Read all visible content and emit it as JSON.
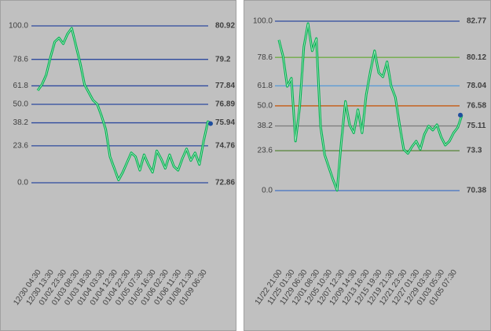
{
  "chart_data": [
    {
      "type": "line",
      "categories": [
        "12/30 04:30",
        null,
        null,
        "12/30 13:30",
        null,
        null,
        "01/02 23:30",
        null,
        null,
        "01/03 08:30",
        null,
        null,
        "01/03 18:30",
        null,
        null,
        "01/04 03:30",
        null,
        null,
        "01/04 12:30",
        null,
        null,
        "01/04 22:30",
        null,
        null,
        "01/05 07:30",
        null,
        null,
        "01/05 16:30",
        null,
        null,
        "01/06 02:30",
        null,
        null,
        "01/06 11:30",
        null,
        null,
        "01/08 21:30",
        null,
        null,
        "01/09 06:30",
        null,
        null
      ],
      "series": [
        {
          "color": "#00b050",
          "values": [
            77.6,
            77.9,
            78.4,
            79.3,
            80.1,
            80.3,
            80.0,
            80.5,
            80.8,
            79.9,
            79.0,
            77.9,
            77.5,
            77.1,
            76.9,
            76.3,
            75.6,
            74.2,
            73.6,
            73.0,
            73.4,
            73.9,
            74.4,
            74.2,
            73.5,
            74.3,
            73.8,
            73.4,
            74.5,
            74.1,
            73.6,
            74.3,
            73.7,
            73.5,
            74.1,
            74.6,
            74.0,
            74.4,
            73.8,
            75.0,
            76.0,
            75.9
          ]
        }
      ],
      "marker_color": "#1f4e9e",
      "ylim": [
        72.86,
        80.92
      ],
      "yticks": [
        80.92,
        79.2,
        77.84,
        76.89,
        75.94,
        74.76,
        72.86
      ],
      "fib_labels": [
        "100.0",
        "78.6",
        "61.8",
        "50.0",
        "38.2",
        "23.6",
        "0.0"
      ],
      "level_colors": [
        "#2e4a9e",
        "#2e4a9e",
        "#2e4a9e",
        "#2e4a9e",
        "#2e4a9e",
        "#2e4a9e",
        "#2e4a9e"
      ]
    },
    {
      "type": "line",
      "categories": [
        "11/22 21:00",
        null,
        null,
        "11/25 01:30",
        null,
        null,
        "11/29 06:30",
        null,
        null,
        "12/01 08:30",
        null,
        null,
        "12/05 10:30",
        null,
        null,
        "12/07 12:30",
        null,
        null,
        "12/09 14:30",
        null,
        null,
        "12/13 16:30",
        null,
        null,
        "12/15 19:30",
        null,
        null,
        "12/19 21:30",
        null,
        null,
        "12/21 23:30",
        null,
        null,
        "12/27 01:30",
        null,
        null,
        "12/29 03:30",
        null,
        null,
        "01/03 05:30",
        null,
        null,
        "01/05 07:30",
        null,
        null
      ],
      "series": [
        {
          "color": "#00b050",
          "values": [
            81.4,
            80.2,
            78.0,
            78.6,
            74.0,
            76.5,
            80.9,
            82.6,
            80.6,
            81.5,
            75.1,
            73.0,
            72.1,
            71.2,
            70.4,
            73.9,
            76.9,
            75.2,
            74.6,
            76.3,
            74.6,
            77.4,
            79.1,
            80.6,
            79.0,
            78.7,
            79.8,
            78.0,
            77.2,
            75.2,
            73.4,
            73.1,
            73.6,
            74.0,
            73.4,
            74.5,
            75.1,
            74.8,
            75.2,
            74.3,
            73.7,
            74.0,
            74.6,
            75.0,
            75.9
          ]
        }
      ],
      "marker_color": "#1f4e9e",
      "ylim": [
        70.38,
        82.77
      ],
      "yticks": [
        82.77,
        80.12,
        78.04,
        76.58,
        75.11,
        73.3,
        70.38
      ],
      "fib_labels": [
        "100.0",
        "78.6",
        "61.8",
        "50.0",
        "38.2",
        "23.6",
        "0.0"
      ],
      "level_colors": [
        "#2e4a9e",
        "#70ad47",
        "#5b9bd5",
        "#c55a11",
        "#808080",
        "#548235",
        "#4472c4"
      ]
    }
  ]
}
